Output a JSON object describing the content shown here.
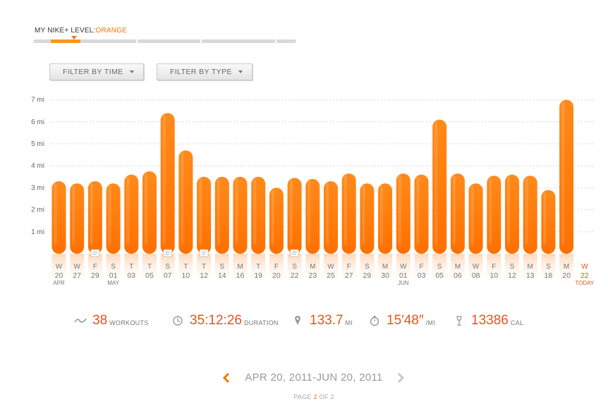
{
  "level": {
    "label": "MY NIKE+ LEVEL:",
    "value": "ORANGE",
    "progress": 0.28
  },
  "filters": {
    "time_label": "FILTER BY TIME",
    "type_label": "FILTER BY TYPE"
  },
  "colors": {
    "accent": "#f07800",
    "bar_top": "#ff8a1a",
    "bar_bottom": "#ff7000",
    "stat_value": "#e8541c",
    "muted": "#999999",
    "date_highlight": "#e8541c"
  },
  "chart_data": {
    "type": "bar",
    "ylim": [
      0,
      7
    ],
    "y_ticks": [
      "7 mi",
      "6 mi",
      "5 mi",
      "4 mi",
      "3 mi",
      "2 mi",
      "1 mi"
    ],
    "grid": true,
    "categories": [
      {
        "day": "W",
        "date": "20",
        "month": "APR"
      },
      {
        "day": "W",
        "date": "27",
        "month": ""
      },
      {
        "day": "F",
        "date": "29",
        "month": ""
      },
      {
        "day": "S",
        "date": "01",
        "month": "MAY"
      },
      {
        "day": "T",
        "date": "03",
        "month": ""
      },
      {
        "day": "T",
        "date": "05",
        "month": ""
      },
      {
        "day": "S",
        "date": "07",
        "month": ""
      },
      {
        "day": "T",
        "date": "10",
        "month": ""
      },
      {
        "day": "T",
        "date": "12",
        "month": ""
      },
      {
        "day": "S",
        "date": "14",
        "month": ""
      },
      {
        "day": "M",
        "date": "16",
        "month": ""
      },
      {
        "day": "T",
        "date": "19",
        "month": ""
      },
      {
        "day": "F",
        "date": "20",
        "month": ""
      },
      {
        "day": "S",
        "date": "22",
        "month": ""
      },
      {
        "day": "M",
        "date": "23",
        "month": ""
      },
      {
        "day": "W",
        "date": "25",
        "month": ""
      },
      {
        "day": "F",
        "date": "27",
        "month": ""
      },
      {
        "day": "S",
        "date": "29",
        "month": ""
      },
      {
        "day": "M",
        "date": "30",
        "month": ""
      },
      {
        "day": "W",
        "date": "01",
        "month": "JUN"
      },
      {
        "day": "F",
        "date": "03",
        "month": ""
      },
      {
        "day": "S",
        "date": "05",
        "month": ""
      },
      {
        "day": "M",
        "date": "06",
        "month": ""
      },
      {
        "day": "W",
        "date": "08",
        "month": ""
      },
      {
        "day": "F",
        "date": "10",
        "month": ""
      },
      {
        "day": "S",
        "date": "12",
        "month": ""
      },
      {
        "day": "M",
        "date": "13",
        "month": ""
      },
      {
        "day": "S",
        "date": "18",
        "month": ""
      },
      {
        "day": "M",
        "date": "20",
        "month": ""
      },
      {
        "day": "W",
        "date": "22",
        "month": "TODAY"
      }
    ],
    "values": [
      3.3,
      3.2,
      3.3,
      3.2,
      3.6,
      3.75,
      6.4,
      4.7,
      3.5,
      3.5,
      3.5,
      3.5,
      3.0,
      3.45,
      3.4,
      3.3,
      3.65,
      3.2,
      3.2,
      3.65,
      3.6,
      6.1,
      3.65,
      3.2,
      3.55,
      3.6,
      3.55,
      2.9,
      7.0,
      null
    ],
    "notes_on": [
      2,
      6,
      8,
      13
    ],
    "today_index": 29
  },
  "stats": [
    {
      "icon": "workouts-icon",
      "value": "38",
      "unit": "WORKOUTS"
    },
    {
      "icon": "clock-icon",
      "value": "35:12:26",
      "unit": "DURATION"
    },
    {
      "icon": "location-pin-icon",
      "value": "133.7",
      "unit": "MI"
    },
    {
      "icon": "stopwatch-icon",
      "value": "15′48″",
      "unit": "/MI"
    },
    {
      "icon": "calories-icon",
      "value": "13386",
      "unit": "CAL"
    }
  ],
  "range": {
    "text": "APR 20, 2011-JUN 20, 2011"
  },
  "pagination": {
    "prefix": "PAGE",
    "current": "2",
    "sep": "OF",
    "total": "2"
  }
}
